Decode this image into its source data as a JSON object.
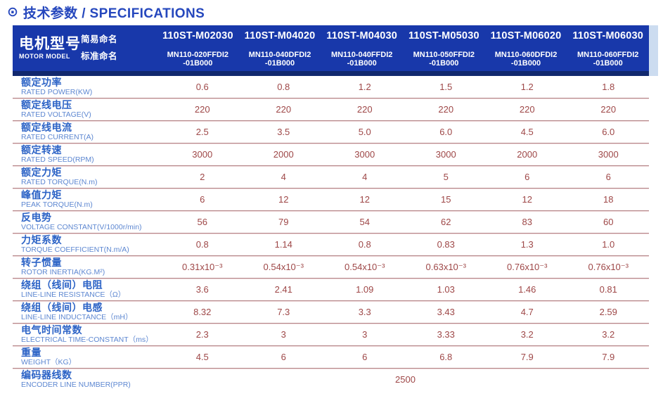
{
  "page": {
    "title": "技术参数 / SPECIFICATIONS",
    "bullet_icon": "⊙"
  },
  "colors": {
    "header_bg": "#1838aa",
    "header_accent_bar": "#11286e",
    "header_side_strip": "#ccdcf0",
    "title_blue": "#2547bd",
    "label_cn_blue": "#2c63c6",
    "label_en_blue": "#5d87d1",
    "value_red": "#9e4747",
    "divider_rose": "#b5878a"
  },
  "table": {
    "motor_model_cn": "电机型号",
    "motor_model_en": "MOTOR MODEL",
    "simple_name_label": "简易命名",
    "standard_name_label": "标准命名",
    "columns": [
      {
        "simple": "110ST-M02030",
        "standard_line1": "MN110-020FFDI2",
        "standard_line2": "-01B000"
      },
      {
        "simple": "110ST-M04020",
        "standard_line1": "MN110-040DFDI2",
        "standard_line2": "-01B000"
      },
      {
        "simple": "110ST-M04030",
        "standard_line1": "MN110-040FFDI2",
        "standard_line2": "-01B000"
      },
      {
        "simple": "110ST-M05030",
        "standard_line1": "MN110-050FFDI2",
        "standard_line2": "-01B000"
      },
      {
        "simple": "110ST-M06020",
        "standard_line1": "MN110-060DFDI2",
        "standard_line2": "-01B000"
      },
      {
        "simple": "110ST-M06030",
        "standard_line1": "MN110-060FFDI2",
        "standard_line2": "-01B000"
      }
    ],
    "rows": [
      {
        "cn": "额定功率",
        "en": "RATED POWER(KW)",
        "values": [
          "0.6",
          "0.8",
          "1.2",
          "1.5",
          "1.2",
          "1.8"
        ]
      },
      {
        "cn": "额定线电压",
        "en": "RATED VOLTAGE(V)",
        "values": [
          "220",
          "220",
          "220",
          "220",
          "220",
          "220"
        ]
      },
      {
        "cn": "额定线电流",
        "en": "RATED CURRENT(A)",
        "values": [
          "2.5",
          "3.5",
          "5.0",
          "6.0",
          "4.5",
          "6.0"
        ]
      },
      {
        "cn": "额定转速",
        "en": "RATED SPEED(RPM)",
        "values": [
          "3000",
          "2000",
          "3000",
          "3000",
          "2000",
          "3000"
        ]
      },
      {
        "cn": "额定力矩",
        "en": "RATED TORQUE(N.m)",
        "values": [
          "2",
          "4",
          "4",
          "5",
          "6",
          "6"
        ]
      },
      {
        "cn": "峰值力矩",
        "en": "PEAK TORQUE(N.m)",
        "values": [
          "6",
          "12",
          "12",
          "15",
          "12",
          "18"
        ]
      },
      {
        "cn": "反电势",
        "en": "VOLTAGE CONSTANT(V/1000r/min)",
        "values": [
          "56",
          "79",
          "54",
          "62",
          "83",
          "60"
        ]
      },
      {
        "cn": "力矩系数",
        "en": "TORQUE COEFFICIENT(N.m/A)",
        "values": [
          "0.8",
          "1.14",
          "0.8",
          "0.83",
          "1.3",
          "1.0"
        ]
      },
      {
        "cn": "转子惯量",
        "en": "ROTOR INERTIA(KG.M²)",
        "values": [
          "0.31x10⁻³",
          "0.54x10⁻³",
          "0.54x10⁻³",
          "0.63x10⁻³",
          "0.76x10⁻³",
          "0.76x10⁻³"
        ]
      },
      {
        "cn": "绕组（线间）电阻",
        "en": "LINE-LINE RESISTANCE（Ω）",
        "values": [
          "3.6",
          "2.41",
          "1.09",
          "1.03",
          "1.46",
          "0.81"
        ]
      },
      {
        "cn": "绕组（线间）电感",
        "en": "LINE-LINE INDUCTANCE（mH）",
        "values": [
          "8.32",
          "7.3",
          "3.3",
          "3.43",
          "4.7",
          "2.59"
        ]
      },
      {
        "cn": "电气时间常数",
        "en": "ELECTRICAL TIME-CONSTANT（ms）",
        "values": [
          "2.3",
          "3",
          "3",
          "3.33",
          "3.2",
          "3.2"
        ]
      },
      {
        "cn": "重量",
        "en": "WEIGHT（KG）",
        "values": [
          "4.5",
          "6",
          "6",
          "6.8",
          "7.9",
          "7.9"
        ]
      }
    ],
    "encoder_row": {
      "cn": "编码器线数",
      "en": "ENCODER LINE NUMBER(PPR)",
      "value": "2500"
    }
  }
}
